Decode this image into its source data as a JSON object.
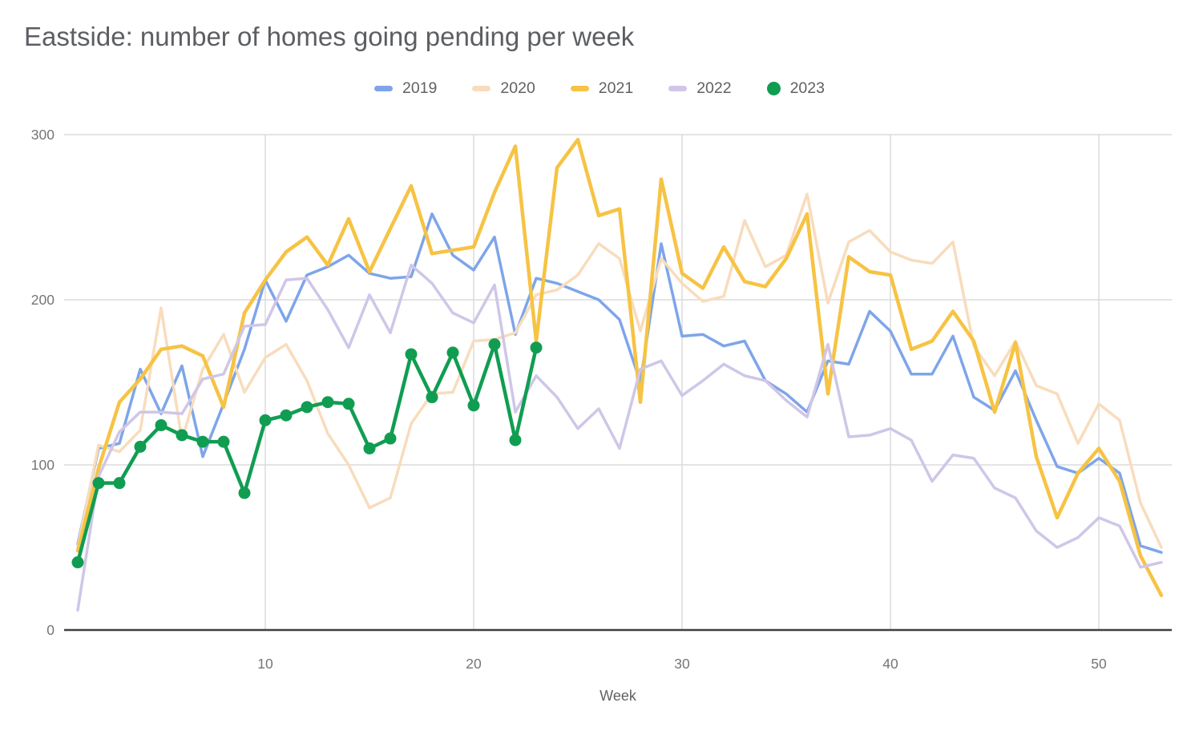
{
  "chart_data": {
    "type": "line",
    "title": "Eastside: number of homes going pending per week",
    "xlabel": "Week",
    "ylabel": "",
    "x_min": 1,
    "x_max": 53,
    "x_step": 1,
    "x_ticks": [
      10,
      20,
      30,
      40,
      50
    ],
    "y_ticks": [
      0,
      100,
      200,
      300
    ],
    "ylim": [
      0,
      300
    ],
    "grid": true,
    "legend_position": "top",
    "series": [
      {
        "name": "2019",
        "color": "#7EA5E9",
        "markers": false,
        "values": [
          52,
          110,
          113,
          158,
          131,
          160,
          105,
          137,
          170,
          212,
          187,
          215,
          220,
          227,
          216,
          213,
          214,
          252,
          227,
          218,
          238,
          179,
          213,
          210,
          205,
          200,
          188,
          150,
          234,
          178,
          179,
          172,
          175,
          151,
          143,
          132,
          163,
          161,
          193,
          181,
          155,
          155,
          178,
          141,
          133,
          157,
          127,
          99,
          95,
          104,
          95,
          51,
          47
        ]
      },
      {
        "name": "2020",
        "color": "#F8DCBC",
        "markers": false,
        "values": [
          50,
          112,
          108,
          121,
          195,
          115,
          158,
          179,
          144,
          165,
          173,
          151,
          119,
          100,
          74,
          80,
          125,
          143,
          144,
          175,
          176,
          180,
          203,
          206,
          215,
          234,
          225,
          181,
          225,
          210,
          199,
          202,
          248,
          220,
          227,
          264,
          198,
          235,
          242,
          229,
          224,
          222,
          235,
          172,
          154,
          175,
          148,
          143,
          113,
          137,
          127,
          77,
          50
        ]
      },
      {
        "name": "2021",
        "color": "#F6C344",
        "markers": false,
        "values": [
          48,
          98,
          138,
          152,
          170,
          172,
          166,
          135,
          192,
          212,
          229,
          238,
          221,
          249,
          217,
          243,
          269,
          228,
          230,
          232,
          265,
          293,
          175,
          280,
          297,
          251,
          255,
          138,
          273,
          216,
          207,
          232,
          211,
          208,
          225,
          252,
          143,
          226,
          217,
          215,
          170,
          175,
          193,
          175,
          132,
          174,
          105,
          68,
          95,
          110,
          90,
          45,
          21
        ]
      },
      {
        "name": "2022",
        "color": "#CFC6E8",
        "markers": false,
        "values": [
          12,
          93,
          120,
          132,
          132,
          131,
          152,
          155,
          184,
          185,
          212,
          213,
          194,
          171,
          203,
          180,
          221,
          210,
          192,
          186,
          209,
          132,
          154,
          141,
          122,
          134,
          110,
          158,
          163,
          142,
          151,
          161,
          154,
          151,
          139,
          129,
          173,
          117,
          118,
          122,
          115,
          90,
          106,
          104,
          86,
          80,
          60,
          50,
          56,
          68,
          63,
          38,
          41
        ]
      },
      {
        "name": "2023",
        "color": "#109D52",
        "markers": true,
        "values": [
          41,
          89,
          89,
          111,
          124,
          118,
          114,
          114,
          83,
          127,
          130,
          135,
          138,
          137,
          110,
          116,
          167,
          141,
          168,
          136,
          173,
          115,
          171
        ]
      }
    ]
  },
  "colors": {
    "gridline": "#DBDBDB",
    "axis_line": "#3C4043",
    "tick_label": "#757575",
    "title_text": "#5C5E62",
    "legend_text": "#616161"
  }
}
